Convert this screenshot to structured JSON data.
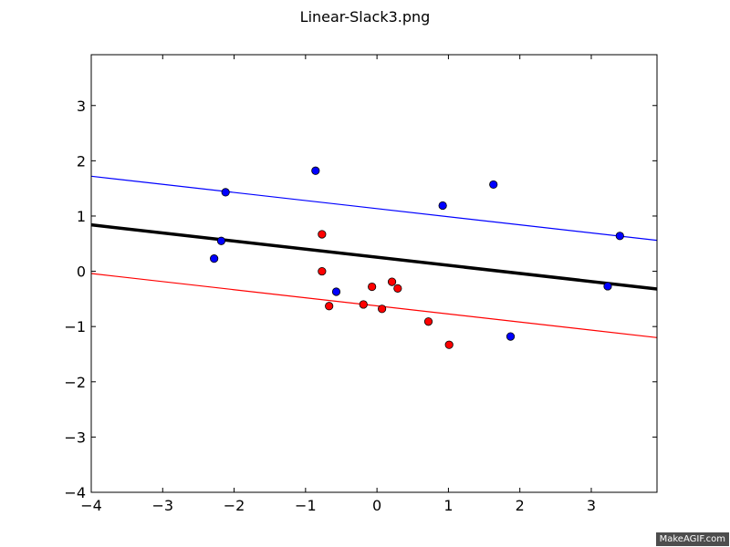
{
  "chart_data": {
    "type": "scatter",
    "title": "Linear-Slack3.png",
    "xlim": [
      -4,
      3.92
    ],
    "ylim": [
      -4,
      3.92
    ],
    "xticks": [
      -4,
      -3,
      -2,
      -1,
      0,
      1,
      2,
      3
    ],
    "yticks": [
      -4,
      -3,
      -2,
      -1,
      0,
      1,
      2,
      3
    ],
    "xtick_labels": [
      "−4",
      "−3",
      "−2",
      "−1",
      "0",
      "1",
      "2",
      "3"
    ],
    "ytick_labels": [
      "−4",
      "−3",
      "−2",
      "−1",
      "0",
      "1",
      "2",
      "3"
    ],
    "grid": false,
    "series": [
      {
        "color": "#0000ff",
        "points": [
          [
            -2.12,
            1.43
          ],
          [
            -0.86,
            1.82
          ],
          [
            -2.18,
            0.55
          ],
          [
            -2.28,
            0.23
          ],
          [
            0.92,
            1.19
          ],
          [
            1.63,
            1.57
          ],
          [
            3.4,
            0.64
          ],
          [
            -0.57,
            -0.37
          ],
          [
            3.23,
            -0.27
          ],
          [
            1.87,
            -1.18
          ]
        ]
      },
      {
        "color": "#ff0000",
        "points": [
          [
            -0.77,
            0.67
          ],
          [
            -0.77,
            0.0
          ],
          [
            -0.67,
            -0.63
          ],
          [
            -0.19,
            -0.6
          ],
          [
            -0.07,
            -0.28
          ],
          [
            0.07,
            -0.68
          ],
          [
            0.21,
            -0.19
          ],
          [
            0.29,
            -0.31
          ],
          [
            0.72,
            -0.91
          ],
          [
            1.01,
            -1.33
          ]
        ]
      }
    ],
    "lines": [
      {
        "color": "#000000",
        "width": 3.5,
        "x": [
          -4,
          3.92
        ],
        "y": [
          0.84,
          -0.32
        ]
      },
      {
        "color": "#0000ff",
        "width": 1.2,
        "x": [
          -4,
          3.92
        ],
        "y": [
          1.72,
          0.56
        ]
      },
      {
        "color": "#ff0000",
        "width": 1.2,
        "x": [
          -4,
          3.92
        ],
        "y": [
          -0.04,
          -1.2
        ]
      }
    ]
  },
  "watermark": "MakeAGIF.com"
}
